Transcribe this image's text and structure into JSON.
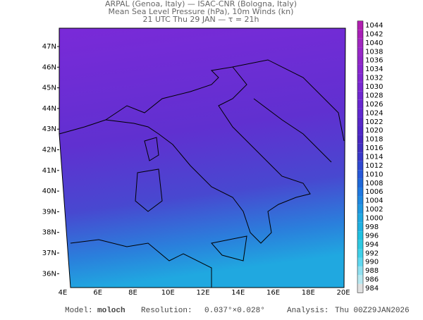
{
  "header": {
    "lines": [
      "ARPAL (Genoa, Italy)  —  ISAC-CNR (Bologna, Italy)",
      "Mean Sea Level Pressure (hPa), 10m Winds (kn)",
      "21 UTC Thu 29 JAN  —  τ = 21h"
    ]
  },
  "map": {
    "lat_labels": [
      "47N",
      "46N",
      "45N",
      "44N",
      "43N",
      "42N",
      "41N",
      "40N",
      "39N",
      "38N",
      "37N",
      "36N"
    ],
    "lon_labels": [
      "4E",
      "6E",
      "8E",
      "10E",
      "12E",
      "14E",
      "16E",
      "18E",
      "20E"
    ]
  },
  "colorbar": {
    "levels": [
      984,
      986,
      988,
      990,
      992,
      994,
      996,
      998,
      1000,
      1002,
      1004,
      1006,
      1008,
      1010,
      1012,
      1014,
      1016,
      1018,
      1020,
      1022,
      1024,
      1026,
      1028,
      1030,
      1032,
      1034,
      1036,
      1038,
      1040,
      1042,
      1044
    ],
    "colors": [
      "#e0e0e0",
      "#b8e8f0",
      "#90e0f0",
      "#60d8f0",
      "#40d0e8",
      "#30c8e0",
      "#20c0e0",
      "#20b0e0",
      "#20a8e0",
      "#2098e0",
      "#2088e0",
      "#2078e0",
      "#2068d8",
      "#2858d8",
      "#3048d0",
      "#3838c8",
      "#4030c0",
      "#4828c0",
      "#5028c8",
      "#5828c8",
      "#6028d0",
      "#6828d0",
      "#7028d0",
      "#7828d0",
      "#8028d0",
      "#8828d0",
      "#9028c8",
      "#9828c8",
      "#a028c0",
      "#a820b8",
      "#b020b0"
    ]
  },
  "footer": {
    "model_label": "Model:",
    "model": "moloch",
    "resolution_label": "Resolution:",
    "resolution": "0.037°×0.028°",
    "analysis_label": "Analysis:",
    "analysis": "Thu 00Z29JAN2026"
  }
}
